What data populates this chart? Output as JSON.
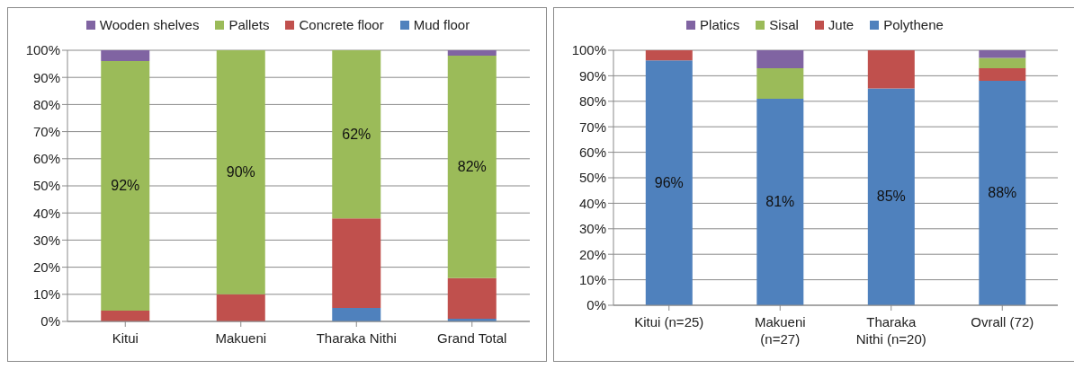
{
  "chart_data": [
    {
      "type": "bar",
      "stacked": true,
      "categories": [
        "Kitui",
        "Makueni",
        "Tharaka Nithi",
        "Grand Total"
      ],
      "series": [
        {
          "name": "Mud floor",
          "color": "#4f81bd",
          "values": [
            0,
            0,
            5,
            1
          ]
        },
        {
          "name": "Concrete floor",
          "color": "#c0504d",
          "values": [
            4,
            10,
            33,
            15
          ]
        },
        {
          "name": "Pallets",
          "color": "#9bbb59",
          "values": [
            92,
            90,
            62,
            82
          ],
          "value_labels": [
            "92%",
            "90%",
            "62%",
            "82%"
          ]
        },
        {
          "name": "Wooden shelves",
          "color": "#8064a2",
          "values": [
            4,
            0,
            0,
            2
          ]
        }
      ],
      "ylim": [
        0,
        100
      ],
      "yticks": [
        {
          "value": 0,
          "label": "0%"
        },
        {
          "value": 10,
          "label": "10%"
        },
        {
          "value": 20,
          "label": "20%"
        },
        {
          "value": 30,
          "label": "30%"
        },
        {
          "value": 40,
          "label": "40%"
        },
        {
          "value": 50,
          "label": "50%"
        },
        {
          "value": 60,
          "label": "60%"
        },
        {
          "value": 70,
          "label": "70%"
        },
        {
          "value": 80,
          "label": "80%"
        },
        {
          "value": 90,
          "label": "90%"
        },
        {
          "value": 100,
          "label": "100%"
        }
      ],
      "grid": "y",
      "legend": "top"
    },
    {
      "type": "bar",
      "stacked": true,
      "categories": [
        "Kitui (n=25)",
        "Makueni (n=27)",
        "Tharaka Nithi (n=20)",
        "Ovrall (72)"
      ],
      "series": [
        {
          "name": "Polythene",
          "color": "#4f81bd",
          "values": [
            96,
            81,
            85,
            88
          ],
          "value_labels": [
            "96%",
            "81%",
            "85%",
            "88%"
          ]
        },
        {
          "name": "Jute",
          "color": "#c0504d",
          "values": [
            4,
            0,
            15,
            5
          ]
        },
        {
          "name": "Sisal",
          "color": "#9bbb59",
          "values": [
            0,
            12,
            0,
            4
          ]
        },
        {
          "name": "Platics",
          "color": "#8064a2",
          "values": [
            0,
            7,
            0,
            3
          ]
        }
      ],
      "ylim": [
        0,
        100
      ],
      "yticks": [
        {
          "value": 0,
          "label": "0%"
        },
        {
          "value": 10,
          "label": "10%"
        },
        {
          "value": 20,
          "label": "20%"
        },
        {
          "value": 30,
          "label": "30%"
        },
        {
          "value": 40,
          "label": "40%"
        },
        {
          "value": 50,
          "label": "50%"
        },
        {
          "value": 60,
          "label": "60%"
        },
        {
          "value": 70,
          "label": "70%"
        },
        {
          "value": 80,
          "label": "80%"
        },
        {
          "value": 90,
          "label": "90%"
        },
        {
          "value": 100,
          "label": "100%"
        }
      ],
      "grid": "y",
      "legend": "top"
    }
  ]
}
